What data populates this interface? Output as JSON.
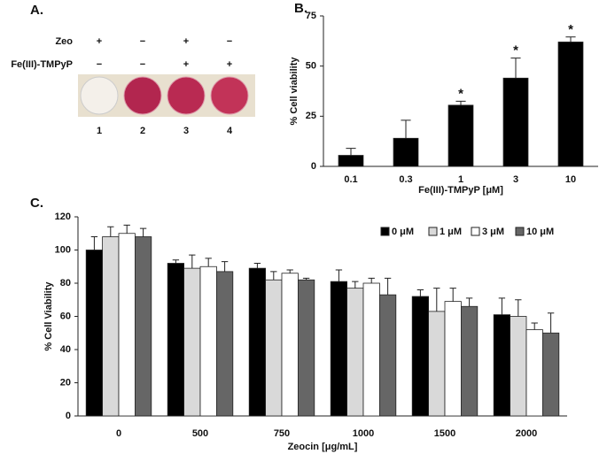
{
  "panel_a": {
    "label": "A.",
    "rows": [
      {
        "name": "Zeo",
        "signs": [
          "+",
          "−",
          "+",
          "−"
        ]
      },
      {
        "name": "Fe(III)-TMPyP",
        "signs": [
          "−",
          "−",
          "+",
          "+"
        ]
      }
    ],
    "wells": [
      "1",
      "2",
      "3",
      "4"
    ]
  },
  "chart_data": [
    {
      "type": "bar",
      "panel": "B.",
      "y_label": "% Cell viability",
      "x_label": "Fe(III)-TMPyP [μM]",
      "categories": [
        "0.1",
        "0.3",
        "1",
        "3",
        "10"
      ],
      "series": [
        {
          "color": "#000000",
          "values": [
            5.5,
            14,
            30.5,
            44,
            62
          ],
          "errors": [
            3.5,
            9,
            2,
            10,
            2.5
          ],
          "markers": [
            null,
            null,
            "*",
            "*",
            "*"
          ]
        }
      ],
      "ylim": [
        0,
        75
      ],
      "yticks": [
        0,
        25,
        50,
        75
      ]
    },
    {
      "type": "bar",
      "panel": "C.",
      "y_label": "% Cell Viability",
      "x_label": "Zeocin [μg/mL]",
      "categories": [
        "0",
        "500",
        "750",
        "1000",
        "1500",
        "2000"
      ],
      "series": [
        {
          "name": "0 μM",
          "color": "#000000",
          "values": [
            100,
            92,
            89,
            81,
            72,
            61
          ],
          "errors": [
            8,
            2,
            3,
            7,
            4,
            10
          ]
        },
        {
          "name": "1 μM",
          "color": "#d9d9d9",
          "values": [
            108,
            89,
            82,
            77,
            63,
            60
          ],
          "errors": [
            6,
            8,
            5,
            4,
            14,
            10
          ]
        },
        {
          "name": "3 μM",
          "color": "#ffffff",
          "values": [
            110,
            90,
            86,
            80,
            69,
            52
          ],
          "errors": [
            5,
            5,
            2,
            3,
            8,
            4
          ]
        },
        {
          "name": "10 μM",
          "color": "#666666",
          "values": [
            108,
            87,
            82,
            73,
            66,
            50
          ],
          "errors": [
            5,
            6,
            1,
            10,
            5,
            12
          ]
        }
      ],
      "ylim": [
        0,
        120
      ],
      "yticks": [
        0,
        20,
        40,
        60,
        80,
        100,
        120
      ],
      "legend": "top-right"
    }
  ]
}
